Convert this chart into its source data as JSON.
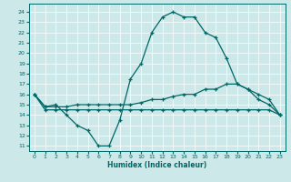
{
  "xlabel": "Humidex (Indice chaleur)",
  "bg_color": "#cce8e8",
  "line_color": "#006666",
  "grid_color": "#ffffff",
  "xlim": [
    -0.5,
    23.5
  ],
  "ylim": [
    10.5,
    24.8
  ],
  "xticks": [
    0,
    1,
    2,
    3,
    4,
    5,
    6,
    7,
    8,
    9,
    10,
    11,
    12,
    13,
    14,
    15,
    16,
    17,
    18,
    19,
    20,
    21,
    22,
    23
  ],
  "yticks": [
    11,
    12,
    13,
    14,
    15,
    16,
    17,
    18,
    19,
    20,
    21,
    22,
    23,
    24
  ],
  "line1_x": [
    0,
    1,
    2,
    3,
    4,
    5,
    6,
    7,
    8,
    9,
    10,
    11,
    12,
    13,
    14,
    15,
    16,
    17,
    18,
    19,
    20,
    21,
    22,
    23
  ],
  "line1_y": [
    16.0,
    14.8,
    15.0,
    14.0,
    13.0,
    12.5,
    11.0,
    11.0,
    13.5,
    17.5,
    19.0,
    22.0,
    23.5,
    24.0,
    23.5,
    23.5,
    22.0,
    21.5,
    19.5,
    17.0,
    16.5,
    15.5,
    15.0,
    14.0
  ],
  "line2_x": [
    0,
    1,
    2,
    3,
    4,
    5,
    6,
    7,
    8,
    9,
    10,
    11,
    12,
    13,
    14,
    15,
    16,
    17,
    18,
    19,
    20,
    21,
    22,
    23
  ],
  "line2_y": [
    16.0,
    14.5,
    14.5,
    14.5,
    14.5,
    14.5,
    14.5,
    14.5,
    14.5,
    14.5,
    14.5,
    14.5,
    14.5,
    14.5,
    14.5,
    14.5,
    14.5,
    14.5,
    14.5,
    14.5,
    14.5,
    14.5,
    14.5,
    14.0
  ],
  "line3_x": [
    0,
    1,
    2,
    3,
    4,
    5,
    6,
    7,
    8,
    9,
    10,
    11,
    12,
    13,
    14,
    15,
    16,
    17,
    18,
    19,
    20,
    21,
    22,
    23
  ],
  "line3_y": [
    16.0,
    14.8,
    14.8,
    14.8,
    15.0,
    15.0,
    15.0,
    15.0,
    15.0,
    15.0,
    15.2,
    15.5,
    15.5,
    15.8,
    16.0,
    16.0,
    16.5,
    16.5,
    17.0,
    17.0,
    16.5,
    16.0,
    15.5,
    14.0
  ]
}
